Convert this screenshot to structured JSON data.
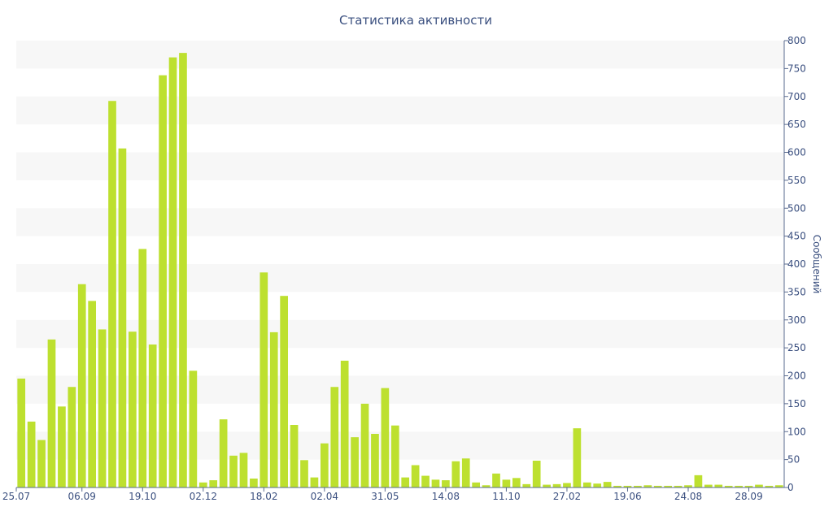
{
  "chart_data": {
    "type": "bar",
    "title": "Статистика активности",
    "xlabel": "",
    "ylabel": "Сообщений",
    "ylim": [
      0,
      800
    ],
    "y_ticks": [
      0,
      50,
      100,
      150,
      200,
      250,
      300,
      350,
      400,
      450,
      500,
      550,
      600,
      650,
      700,
      750,
      800
    ],
    "y_axis_side": "right",
    "x_tick_labels": [
      {
        "index": 0,
        "label": "25.07"
      },
      {
        "index": 6,
        "label": "06.09"
      },
      {
        "index": 12,
        "label": "19.10"
      },
      {
        "index": 18,
        "label": "02.12"
      },
      {
        "index": 24,
        "label": "18.02"
      },
      {
        "index": 30,
        "label": "02.04"
      },
      {
        "index": 36,
        "label": "31.05"
      },
      {
        "index": 42,
        "label": "14.08"
      },
      {
        "index": 48,
        "label": "11.10"
      },
      {
        "index": 54,
        "label": "27.02"
      },
      {
        "index": 60,
        "label": "19.06"
      },
      {
        "index": 66,
        "label": "24.08"
      },
      {
        "index": 72,
        "label": "28.09"
      }
    ],
    "values": [
      195,
      118,
      85,
      265,
      145,
      180,
      364,
      334,
      283,
      692,
      607,
      279,
      427,
      256,
      738,
      770,
      778,
      209,
      9,
      13,
      122,
      57,
      62,
      16,
      385,
      278,
      343,
      112,
      49,
      18,
      79,
      180,
      227,
      90,
      150,
      96,
      178,
      111,
      18,
      40,
      21,
      14,
      13,
      47,
      52,
      9,
      4,
      25,
      14,
      17,
      6,
      48,
      5,
      6,
      8,
      106,
      9,
      7,
      10,
      3,
      3,
      3,
      4,
      3,
      3,
      3,
      4,
      22,
      5,
      5,
      3,
      3,
      3,
      5,
      3,
      4
    ],
    "bar_color": "#bde02f",
    "band_color": "#f7f7f7",
    "text_color": "#3a4f7f",
    "axis_color": "#5a6b8f",
    "grid": "alternating horizontal bands",
    "legend": "none"
  }
}
